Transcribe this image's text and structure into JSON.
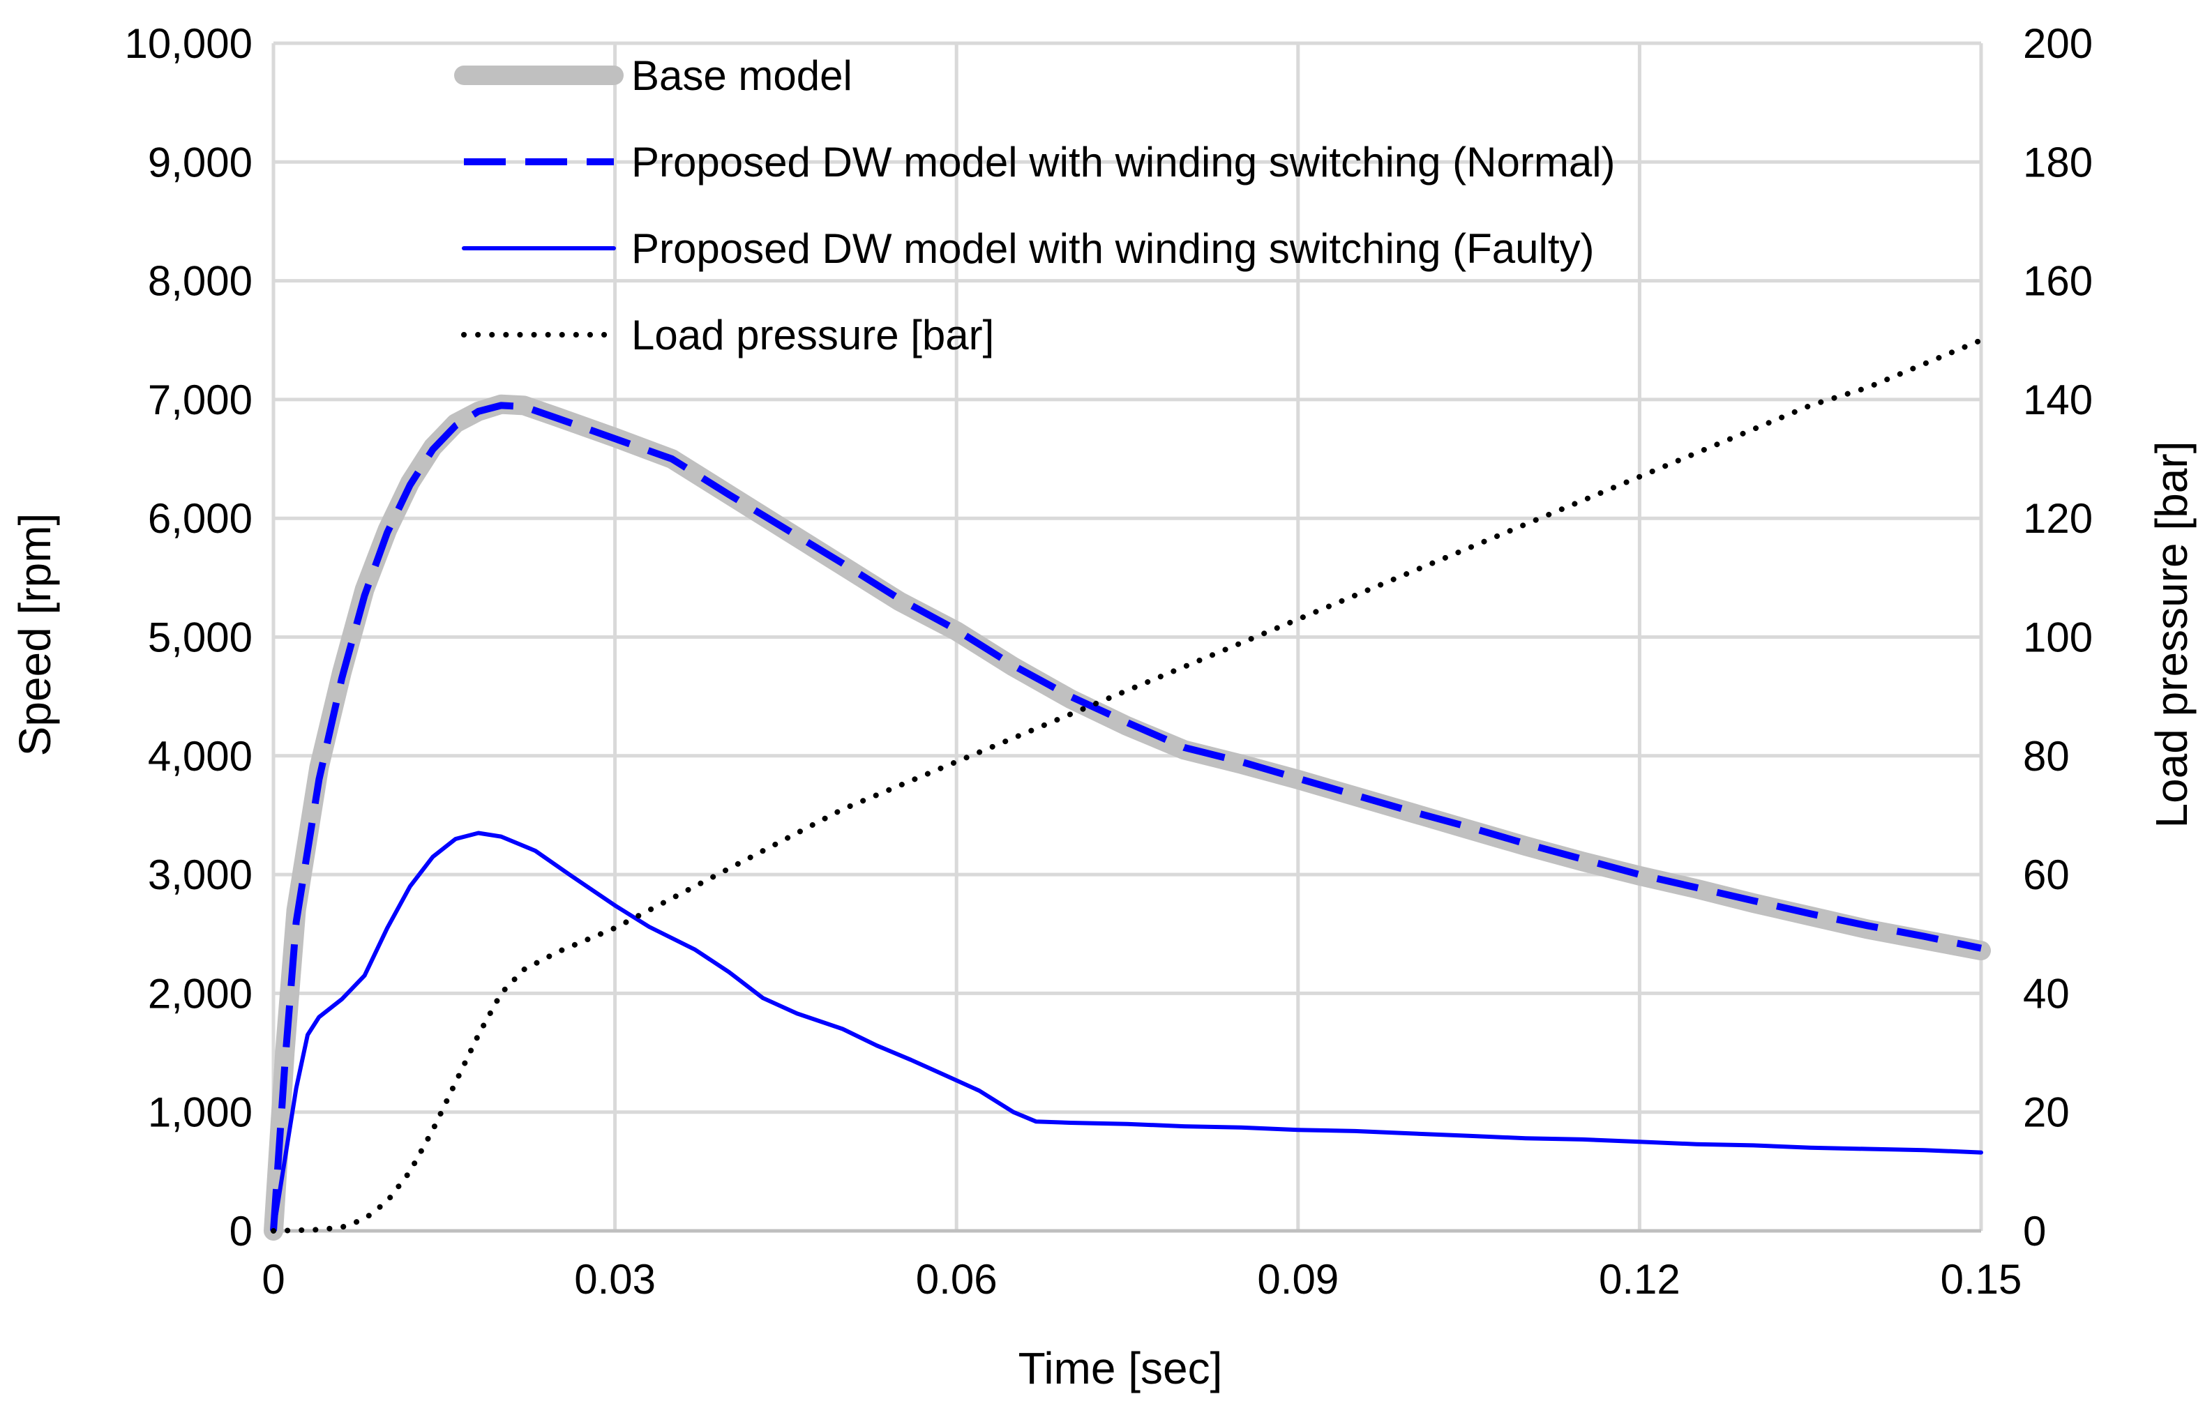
{
  "chart_data": {
    "type": "line",
    "xlabel": "Time [sec]",
    "ylabel_left": "Speed [rpm]",
    "ylabel_right": "Load pressure [bar]",
    "xlim": [
      0,
      0.15
    ],
    "ylim_left": [
      0,
      10000
    ],
    "ylim_right": [
      0,
      200
    ],
    "x_ticks": [
      0,
      0.03,
      0.06,
      0.09,
      0.12,
      0.15
    ],
    "x_tick_labels": [
      "0",
      "0.03",
      "0.06",
      "0.09",
      "0.12",
      "0.15"
    ],
    "y_left_ticks": [
      0,
      1000,
      2000,
      3000,
      4000,
      5000,
      6000,
      7000,
      8000,
      9000,
      10000
    ],
    "y_left_tick_labels": [
      "0",
      "1,000",
      "2,000",
      "3,000",
      "4,000",
      "5,000",
      "6,000",
      "7,000",
      "8,000",
      "9,000",
      "10,000"
    ],
    "y_right_ticks": [
      0,
      20,
      40,
      60,
      80,
      100,
      120,
      140,
      160,
      180,
      200
    ],
    "y_right_tick_labels": [
      "0",
      "20",
      "40",
      "60",
      "80",
      "100",
      "120",
      "140",
      "160",
      "180",
      "200"
    ],
    "grid": true,
    "legend_position": "top-left",
    "series": [
      {
        "name": "Base model",
        "axis": "left",
        "color": "#c0c0c0",
        "style": "solid-thick",
        "points": [
          [
            0,
            0
          ],
          [
            0.001,
            1500
          ],
          [
            0.002,
            2700
          ],
          [
            0.004,
            3900
          ],
          [
            0.006,
            4700
          ],
          [
            0.008,
            5400
          ],
          [
            0.01,
            5900
          ],
          [
            0.012,
            6300
          ],
          [
            0.014,
            6600
          ],
          [
            0.016,
            6800
          ],
          [
            0.018,
            6900
          ],
          [
            0.02,
            6960
          ],
          [
            0.022,
            6950
          ],
          [
            0.025,
            6850
          ],
          [
            0.03,
            6680
          ],
          [
            0.035,
            6500
          ],
          [
            0.04,
            6200
          ],
          [
            0.045,
            5900
          ],
          [
            0.05,
            5600
          ],
          [
            0.055,
            5300
          ],
          [
            0.06,
            5050
          ],
          [
            0.065,
            4750
          ],
          [
            0.07,
            4480
          ],
          [
            0.075,
            4250
          ],
          [
            0.08,
            4050
          ],
          [
            0.085,
            3930
          ],
          [
            0.09,
            3800
          ],
          [
            0.095,
            3660
          ],
          [
            0.1,
            3520
          ],
          [
            0.105,
            3380
          ],
          [
            0.11,
            3240
          ],
          [
            0.115,
            3110
          ],
          [
            0.12,
            2990
          ],
          [
            0.125,
            2880
          ],
          [
            0.13,
            2760
          ],
          [
            0.135,
            2650
          ],
          [
            0.14,
            2540
          ],
          [
            0.145,
            2450
          ],
          [
            0.15,
            2360
          ]
        ]
      },
      {
        "name": "Proposed DW model with winding switching (Normal)",
        "axis": "left",
        "color": "#0000ff",
        "style": "dashed",
        "points": [
          [
            0,
            0
          ],
          [
            0.001,
            1400
          ],
          [
            0.002,
            2600
          ],
          [
            0.004,
            3800
          ],
          [
            0.006,
            4650
          ],
          [
            0.008,
            5350
          ],
          [
            0.01,
            5880
          ],
          [
            0.012,
            6280
          ],
          [
            0.014,
            6580
          ],
          [
            0.016,
            6780
          ],
          [
            0.018,
            6900
          ],
          [
            0.02,
            6950
          ],
          [
            0.022,
            6940
          ],
          [
            0.025,
            6840
          ],
          [
            0.03,
            6670
          ],
          [
            0.035,
            6500
          ],
          [
            0.04,
            6200
          ],
          [
            0.045,
            5910
          ],
          [
            0.05,
            5620
          ],
          [
            0.055,
            5320
          ],
          [
            0.06,
            5060
          ],
          [
            0.065,
            4760
          ],
          [
            0.07,
            4500
          ],
          [
            0.075,
            4280
          ],
          [
            0.08,
            4070
          ],
          [
            0.085,
            3950
          ],
          [
            0.09,
            3810
          ],
          [
            0.095,
            3670
          ],
          [
            0.1,
            3530
          ],
          [
            0.105,
            3400
          ],
          [
            0.11,
            3260
          ],
          [
            0.115,
            3130
          ],
          [
            0.12,
            3000
          ],
          [
            0.125,
            2890
          ],
          [
            0.13,
            2780
          ],
          [
            0.135,
            2670
          ],
          [
            0.14,
            2570
          ],
          [
            0.145,
            2480
          ],
          [
            0.15,
            2380
          ]
        ]
      },
      {
        "name": "Proposed DW model with winding switching (Faulty)",
        "axis": "left",
        "color": "#0000ff",
        "style": "solid",
        "points": [
          [
            0,
            0
          ],
          [
            0.001,
            600
          ],
          [
            0.002,
            1200
          ],
          [
            0.003,
            1650
          ],
          [
            0.004,
            1800
          ],
          [
            0.006,
            1950
          ],
          [
            0.008,
            2150
          ],
          [
            0.01,
            2550
          ],
          [
            0.012,
            2900
          ],
          [
            0.014,
            3150
          ],
          [
            0.016,
            3300
          ],
          [
            0.018,
            3350
          ],
          [
            0.02,
            3320
          ],
          [
            0.023,
            3200
          ],
          [
            0.026,
            3000
          ],
          [
            0.03,
            2740
          ],
          [
            0.033,
            2560
          ],
          [
            0.037,
            2370
          ],
          [
            0.04,
            2180
          ],
          [
            0.043,
            1960
          ],
          [
            0.046,
            1830
          ],
          [
            0.05,
            1700
          ],
          [
            0.053,
            1560
          ],
          [
            0.056,
            1440
          ],
          [
            0.059,
            1310
          ],
          [
            0.062,
            1180
          ],
          [
            0.065,
            1000
          ],
          [
            0.067,
            920
          ],
          [
            0.07,
            910
          ],
          [
            0.075,
            900
          ],
          [
            0.08,
            880
          ],
          [
            0.085,
            870
          ],
          [
            0.09,
            850
          ],
          [
            0.095,
            840
          ],
          [
            0.1,
            820
          ],
          [
            0.105,
            800
          ],
          [
            0.11,
            780
          ],
          [
            0.115,
            770
          ],
          [
            0.12,
            750
          ],
          [
            0.125,
            730
          ],
          [
            0.13,
            720
          ],
          [
            0.135,
            700
          ],
          [
            0.14,
            690
          ],
          [
            0.145,
            680
          ],
          [
            0.15,
            660
          ]
        ]
      },
      {
        "name": "Load pressure [bar]",
        "axis": "right",
        "color": "#000000",
        "style": "dotted",
        "points": [
          [
            0,
            0
          ],
          [
            0.004,
            0.2
          ],
          [
            0.006,
            0.6
          ],
          [
            0.008,
            2
          ],
          [
            0.01,
            5
          ],
          [
            0.012,
            10
          ],
          [
            0.014,
            17
          ],
          [
            0.016,
            25
          ],
          [
            0.018,
            33
          ],
          [
            0.02,
            40
          ],
          [
            0.022,
            44
          ],
          [
            0.025,
            47
          ],
          [
            0.03,
            51
          ],
          [
            0.035,
            56
          ],
          [
            0.04,
            61
          ],
          [
            0.045,
            66
          ],
          [
            0.05,
            71
          ],
          [
            0.055,
            75
          ],
          [
            0.06,
            79
          ],
          [
            0.065,
            83
          ],
          [
            0.07,
            87
          ],
          [
            0.075,
            91
          ],
          [
            0.08,
            95
          ],
          [
            0.085,
            99
          ],
          [
            0.09,
            103
          ],
          [
            0.095,
            107
          ],
          [
            0.1,
            111
          ],
          [
            0.105,
            115
          ],
          [
            0.11,
            119
          ],
          [
            0.115,
            123
          ],
          [
            0.12,
            127
          ],
          [
            0.125,
            131
          ],
          [
            0.13,
            135
          ],
          [
            0.135,
            139
          ],
          [
            0.14,
            142
          ],
          [
            0.145,
            146
          ],
          [
            0.15,
            150
          ]
        ]
      }
    ]
  }
}
